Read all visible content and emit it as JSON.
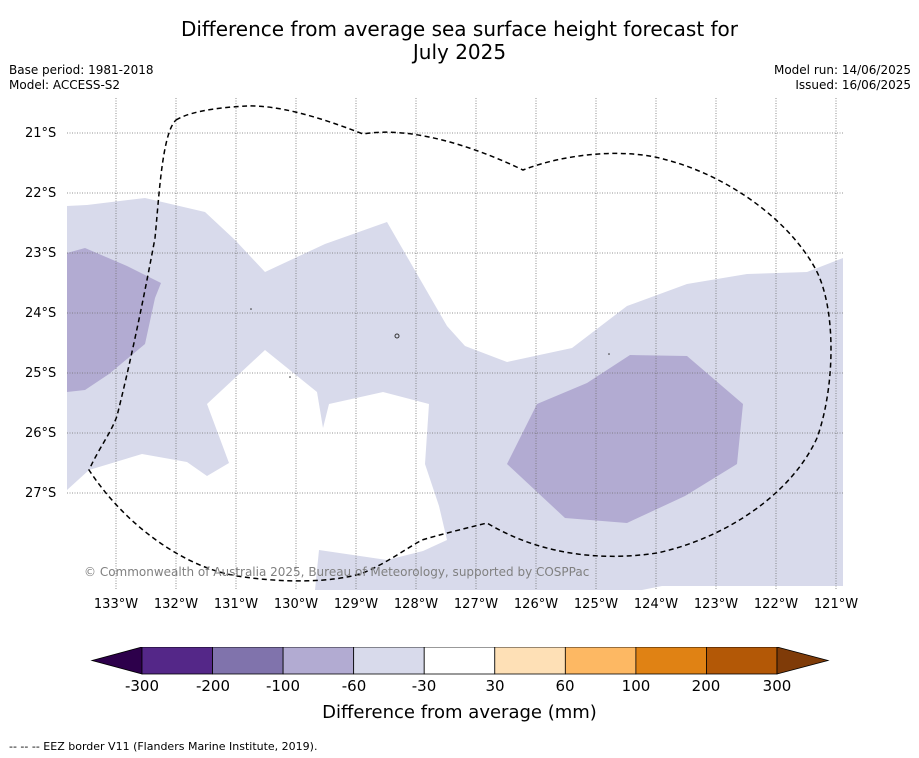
{
  "title_line1": "Difference from average sea surface height forecast for",
  "title_line2": "July 2025",
  "base_period": "Base period: 1981-2018",
  "model": "Model: ACCESS-S2",
  "model_run": "Model run: 14/06/2025",
  "issued": "Issued: 16/06/2025",
  "lat_labels": [
    "21°S",
    "22°S",
    "23°S",
    "24°S",
    "25°S",
    "26°S",
    "27°S"
  ],
  "lon_labels": [
    "133°W",
    "132°W",
    "131°W",
    "130°W",
    "129°W",
    "128°W",
    "127°W",
    "126°W",
    "125°W",
    "124°W",
    "123°W",
    "122°W",
    "121°W"
  ],
  "copyright": "© Commonwealth of Australia 2025, Bureau of Meteorology, supported by COSPPac",
  "colorbar": {
    "ticks": [
      "-300",
      "-200",
      "-100",
      "-60",
      "-30",
      "30",
      "60",
      "100",
      "200",
      "300"
    ],
    "colors": [
      "#2d004b",
      "#542788",
      "#8073ac",
      "#b2abd2",
      "#d8daeb",
      "#ffffff",
      "#fee0b6",
      "#fdb863",
      "#e08214",
      "#b35806",
      "#7f3b08"
    ],
    "label": "Difference from average (mm)"
  },
  "footer": "--  --  -- EEZ border V11 (Flanders Marine Institute, 2019).",
  "map_layers": {
    "light_band_class": "-60 to -30",
    "dark_patch_class": "-100 to -60",
    "eez_border_style": "black dashed"
  }
}
